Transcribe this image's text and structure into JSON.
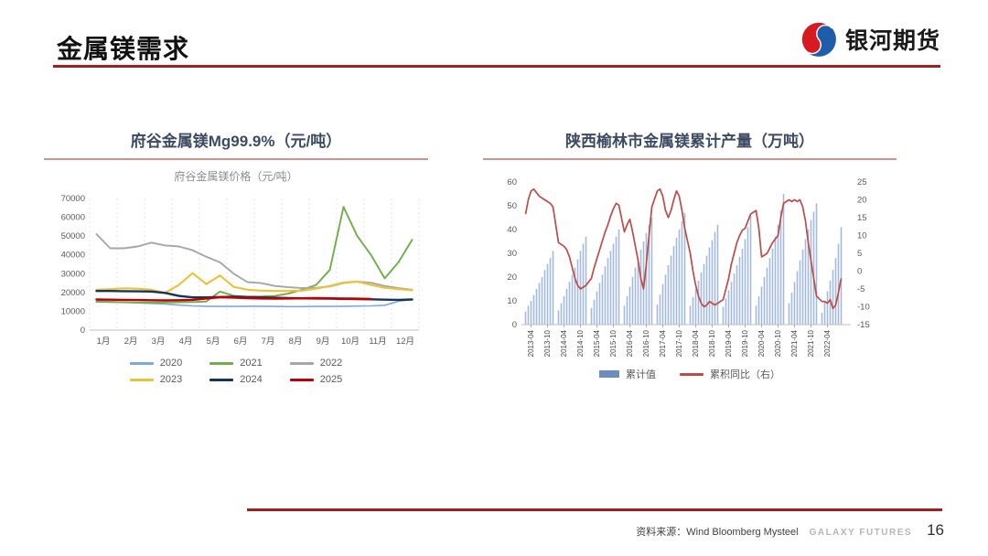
{
  "header": {
    "title": "金属镁需求",
    "logo_text": "银河期货"
  },
  "left_panel": {
    "title": "府谷金属镁Mg99.9%（元/吨）"
  },
  "right_panel": {
    "title": "陕西榆林市金属镁累计产量（万吨）"
  },
  "footer": {
    "source": "资料来源：Wind Bloomberg Mysteel",
    "brand": "GALAXY FUTURES",
    "page": "16"
  },
  "colors": {
    "accent_red": "#9E2020",
    "panel_rule": "#D78F88",
    "logo_blue": "#1F5CA9",
    "logo_red": "#D71920"
  },
  "chart_data": [
    {
      "type": "line",
      "title": "府谷金属镁价格（元/吨）",
      "x_labels": [
        "1月",
        "2月",
        "3月",
        "4月",
        "5月",
        "6月",
        "7月",
        "8月",
        "9月",
        "10月",
        "11月",
        "12月"
      ],
      "ylim": [
        0,
        70000
      ],
      "ytick_step": 10000,
      "points_per_month": 2,
      "legend_position": "bottom",
      "series": [
        {
          "name": "2020",
          "color": "#7FA8DC",
          "values": [
            15500,
            15200,
            14800,
            14500,
            14200,
            13900,
            13300,
            12900,
            12700,
            12600,
            12600,
            12700,
            12700,
            12600,
            12500,
            12500,
            12600,
            12600,
            12700,
            12800,
            12900,
            13200,
            15300,
            16300
          ]
        },
        {
          "name": "2021",
          "color": "#6FAE49",
          "values": [
            15000,
            14900,
            14800,
            14700,
            14700,
            14700,
            14800,
            14900,
            15200,
            20500,
            18300,
            17800,
            17900,
            18200,
            19500,
            21500,
            24000,
            32000,
            65500,
            50000,
            40000,
            27500,
            36000,
            48000
          ]
        },
        {
          "name": "2022",
          "color": "#A6A6A6",
          "values": [
            51000,
            43500,
            43500,
            44500,
            46500,
            45000,
            44500,
            42500,
            39000,
            36000,
            30000,
            25500,
            25000,
            23500,
            22800,
            22300,
            22500,
            23200,
            25000,
            25800,
            25200,
            23500,
            22300,
            21500
          ]
        },
        {
          "name": "2023",
          "color": "#ECC23D",
          "values": [
            21500,
            21800,
            22200,
            22000,
            21500,
            19800,
            24000,
            30300,
            24500,
            29000,
            23000,
            21500,
            21000,
            20800,
            20800,
            21000,
            22000,
            23500,
            25300,
            25800,
            24000,
            22500,
            21800,
            21200
          ]
        },
        {
          "name": "2024",
          "color": "#17325C",
          "values": [
            20800,
            20800,
            20700,
            20600,
            20500,
            19800,
            18200,
            17400,
            17400,
            17600,
            17800,
            17600,
            17400,
            17200,
            17000,
            16900,
            16800,
            16700,
            16600,
            16500,
            16400,
            16200,
            16100,
            16300
          ]
        },
        {
          "name": "2025",
          "color": "#C00000",
          "values": [
            16300,
            16200,
            16100,
            16000,
            15900,
            15800,
            15900,
            16100,
            16800,
            17500,
            17300,
            17000,
            16800,
            16700,
            16800,
            16900,
            17000,
            16900,
            16800,
            16700,
            16600,
            null,
            null,
            null
          ]
        }
      ]
    },
    {
      "type": "bar+line",
      "title": "",
      "x_axis": {
        "start_year": 2013,
        "end_year": 2022,
        "tick_labels": [
          "2013-04",
          "2013-10",
          "2014-04",
          "2014-10",
          "2015-04",
          "2015-10",
          "2016-04",
          "2016-10",
          "2017-04",
          "2017-10",
          "2018-04",
          "2018-10",
          "2019-04",
          "2019-10",
          "2020-04",
          "2020-10",
          "2021-04",
          "2021-10",
          "2022-04"
        ]
      },
      "left_axis": {
        "min": 0,
        "max": 60,
        "step": 10
      },
      "right_axis": {
        "min": -15,
        "max": 25,
        "step": 5
      },
      "bars": {
        "name": "累计值",
        "color": "#A3BBD8",
        "legend_color": "#6B8EBF",
        "years": [
          {
            "year": 2013,
            "start_month": 2,
            "values": [
              5.5,
              8,
              10,
              12.5,
              15,
              17.5,
              20,
              23,
              25.5,
              28,
              31
            ]
          },
          {
            "year": 2014,
            "start_month": 2,
            "values": [
              6,
              9,
              12,
              15,
              18,
              21,
              24,
              27.5,
              31,
              34,
              37
            ]
          },
          {
            "year": 2015,
            "start_month": 2,
            "values": [
              7,
              10.5,
              14,
              17.5,
              21,
              24.5,
              28,
              31,
              34,
              37,
              40
            ]
          },
          {
            "year": 2016,
            "start_month": 2,
            "values": [
              8,
              12,
              16,
              20,
              24,
              28,
              31.5,
              35,
              38.5,
              42,
              45
            ]
          },
          {
            "year": 2017,
            "start_month": 2,
            "values": [
              8.5,
              12.5,
              17,
              21,
              25,
              29,
              33,
              36.5,
              40,
              43.5,
              47
            ]
          },
          {
            "year": 2018,
            "start_month": 2,
            "values": [
              8,
              11.5,
              15,
              18.5,
              22,
              25.5,
              29,
              32.5,
              35.5,
              39,
              42
            ]
          },
          {
            "year": 2019,
            "start_month": 2,
            "values": [
              7.5,
              11,
              14.5,
              18,
              21.5,
              25,
              28.5,
              32,
              36,
              41,
              46
            ]
          },
          {
            "year": 2020,
            "start_month": 2,
            "values": [
              8,
              12,
              16,
              20,
              24,
              28,
              32,
              37,
              42,
              48,
              55
            ]
          },
          {
            "year": 2021,
            "start_month": 2,
            "values": [
              9,
              13.5,
              18,
              22.5,
              27,
              31.5,
              36,
              40,
              44,
              47.5,
              51
            ]
          },
          {
            "year": 2022,
            "start_month": 2,
            "values": [
              5,
              9.5,
              14,
              18.5,
              23,
              28,
              34,
              41
            ]
          }
        ]
      },
      "line": {
        "name": "累积同比（右）",
        "color": "#BE4B48",
        "years": [
          {
            "year": 2013,
            "start_month": 2,
            "values": [
              16,
              20,
              22.5,
              23,
              22,
              21,
              20.5,
              20,
              19.5,
              19,
              18
            ]
          },
          {
            "year": 2014,
            "start_month": 2,
            "values": [
              8,
              7.5,
              7,
              6,
              4,
              1,
              -2,
              -4,
              -5,
              -4.5,
              -4
            ]
          },
          {
            "year": 2015,
            "start_month": 2,
            "values": [
              -2,
              1,
              3.5,
              6,
              8.5,
              11,
              13,
              15.5,
              17.5,
              19,
              18.5
            ]
          },
          {
            "year": 2016,
            "start_month": 2,
            "values": [
              11,
              13,
              14.5,
              11,
              7,
              3,
              -2,
              -5,
              2,
              10,
              18
            ]
          },
          {
            "year": 2017,
            "start_month": 2,
            "values": [
              22.5,
              23,
              21,
              17,
              15,
              17,
              20,
              22.5,
              21,
              17,
              12
            ]
          },
          {
            "year": 2018,
            "start_month": 2,
            "values": [
              5,
              0,
              -4,
              -7,
              -9,
              -10,
              -9.5,
              -8.5,
              -9,
              -9.5,
              -9
            ]
          },
          {
            "year": 2019,
            "start_month": 2,
            "values": [
              -8,
              -5,
              -2,
              2,
              5,
              8,
              10,
              11.5,
              12,
              14,
              16
            ]
          },
          {
            "year": 2020,
            "start_month": 2,
            "values": [
              17,
              12,
              4,
              4.5,
              5,
              6.5,
              8,
              9,
              10,
              15,
              19
            ]
          },
          {
            "year": 2021,
            "start_month": 2,
            "values": [
              20,
              19.5,
              20,
              19.5,
              20,
              18,
              14,
              8,
              3,
              -2,
              -7
            ]
          },
          {
            "year": 2022,
            "start_month": 2,
            "values": [
              -8.5,
              -8.5,
              -9,
              -8,
              -10.5,
              -9.5,
              -6,
              -2
            ]
          }
        ]
      }
    }
  ]
}
